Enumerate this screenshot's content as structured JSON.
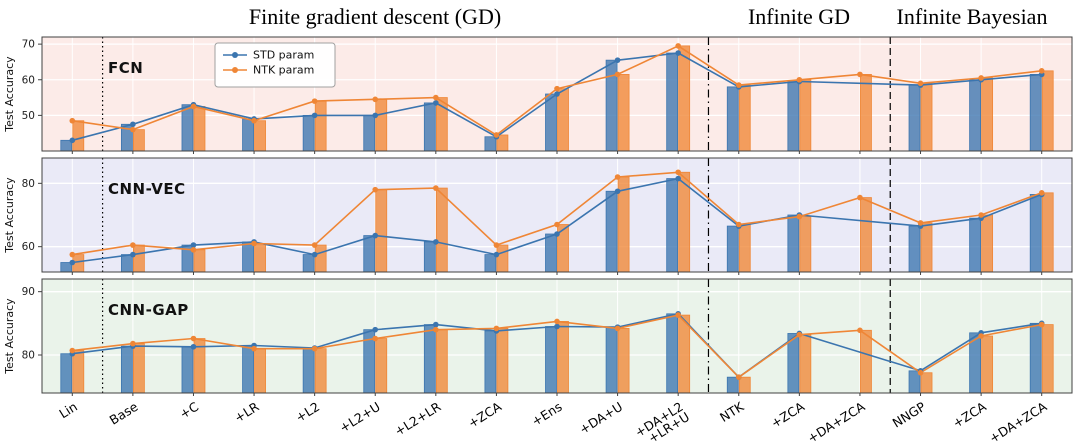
{
  "headers": {
    "finite": "Finite gradient descent (GD)",
    "infinite_gd": "Infinite GD",
    "infinite_bayesian": "Infinite Bayesian"
  },
  "colors": {
    "std": "#3b75af",
    "ntk": "#ef8636",
    "axis": "#404040",
    "grid": "#ffffff",
    "separator": "#000000"
  },
  "legend": {
    "items": [
      {
        "color_key": "std",
        "label": "STD param"
      },
      {
        "color_key": "ntk",
        "label": "NTK param"
      }
    ]
  },
  "categories": [
    "Lin",
    "Base",
    "+C",
    "+LR",
    "+L2",
    "+L2+U",
    "+L2+LR",
    "+ZCA",
    "+Ens",
    "+DA+U",
    "+DA+L2\n+LR+U",
    "NTK",
    "+ZCA",
    "+DA+ZCA",
    "NNGP",
    "+ZCA",
    "+DA+ZCA"
  ],
  "separators": [
    {
      "after_index": 0,
      "style": "dotted"
    },
    {
      "after_index": 10,
      "style": "dashdot"
    },
    {
      "after_index": 13,
      "style": "dashed"
    }
  ],
  "chart_data": [
    {
      "type": "bar+line",
      "panel_label": "FCN",
      "ylabel": "Test Accuracy",
      "bg": "#fcebe8",
      "ylim": [
        40,
        72
      ],
      "yticks": [
        50,
        60,
        70
      ],
      "show_legend": true,
      "series": [
        {
          "name": "STD param",
          "color_key": "std",
          "values": [
            43,
            47.5,
            53,
            49,
            50,
            50,
            53.5,
            44,
            56,
            65.5,
            67.5,
            58,
            59.5,
            null,
            58.5,
            60,
            61.5
          ]
        },
        {
          "name": "NTK param",
          "color_key": "ntk",
          "values": [
            48.5,
            46,
            52.5,
            48.5,
            54,
            54.5,
            55,
            44.5,
            57.5,
            61.5,
            69.5,
            58.5,
            60,
            61.5,
            59,
            60.5,
            62.5
          ]
        }
      ]
    },
    {
      "type": "bar+line",
      "panel_label": "CNN-VEC",
      "ylabel": "Test Accuracy",
      "bg": "#eaeaf7",
      "ylim": [
        52,
        88
      ],
      "yticks": [
        60,
        80
      ],
      "show_legend": false,
      "series": [
        {
          "name": "STD param",
          "color_key": "std",
          "values": [
            55,
            57.5,
            60.5,
            61.5,
            57.5,
            63.5,
            61.5,
            57.5,
            64,
            77.5,
            81.5,
            66.5,
            70,
            null,
            66.5,
            69,
            76.5
          ]
        },
        {
          "name": "NTK param",
          "color_key": "ntk",
          "values": [
            57.5,
            60.5,
            59,
            61,
            60.5,
            78,
            78.5,
            60.5,
            67,
            82,
            83.5,
            67,
            69.5,
            75.5,
            67.5,
            70,
            77
          ]
        }
      ]
    },
    {
      "type": "bar+line",
      "panel_label": "CNN-GAP",
      "ylabel": "Test Accuracy",
      "bg": "#eaf3ea",
      "ylim": [
        74,
        92
      ],
      "yticks": [
        80,
        90
      ],
      "show_legend": false,
      "series": [
        {
          "name": "STD param",
          "color_key": "std",
          "values": [
            80.2,
            81.4,
            81.3,
            81.5,
            81.1,
            84,
            84.8,
            83.8,
            84.5,
            84.4,
            86.5,
            76.5,
            83.4,
            null,
            77.5,
            83.5,
            85
          ]
        },
        {
          "name": "NTK param",
          "color_key": "ntk",
          "values": [
            80.7,
            81.8,
            82.6,
            81,
            81,
            82.6,
            84,
            84.2,
            85.3,
            84.2,
            86.3,
            76.5,
            83.2,
            83.9,
            77.2,
            83,
            84.8
          ]
        }
      ]
    }
  ]
}
